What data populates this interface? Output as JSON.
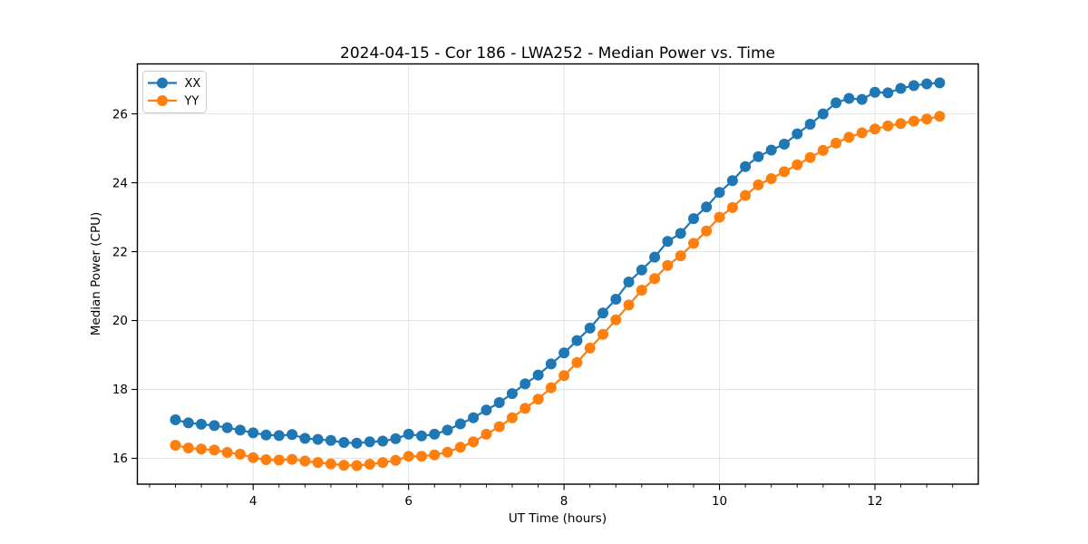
{
  "figure": {
    "background": "#ffffff"
  },
  "chart_data": {
    "type": "line",
    "title": "2024-04-15 - Cor 186 - LWA252 - Median Power vs. Time",
    "xlabel": "UT Time (hours)",
    "ylabel": "Median Power (CPU)",
    "xlim": [
      2.51,
      13.33
    ],
    "ylim": [
      15.25,
      27.45
    ],
    "xticks": [
      4,
      6,
      8,
      10,
      12
    ],
    "yticks": [
      16,
      18,
      20,
      22,
      24,
      26
    ],
    "minor_xtick_step": 0.3333,
    "grid": true,
    "grid_color": "#e4e4e4",
    "spine_color": "#000000",
    "legend_position": "upper-left",
    "marker": "circle",
    "x": [
      3.0,
      3.167,
      3.333,
      3.5,
      3.667,
      3.833,
      4.0,
      4.167,
      4.333,
      4.5,
      4.667,
      4.833,
      5.0,
      5.167,
      5.333,
      5.5,
      5.667,
      5.833,
      6.0,
      6.167,
      6.333,
      6.5,
      6.667,
      6.833,
      7.0,
      7.167,
      7.333,
      7.5,
      7.667,
      7.833,
      8.0,
      8.167,
      8.333,
      8.5,
      8.667,
      8.833,
      9.0,
      9.167,
      9.333,
      9.5,
      9.667,
      9.833,
      10.0,
      10.167,
      10.333,
      10.5,
      10.667,
      10.833,
      11.0,
      11.167,
      11.333,
      11.5,
      11.667,
      11.833,
      12.0,
      12.167,
      12.333,
      12.5,
      12.667,
      12.833
    ],
    "series": [
      {
        "name": "XX",
        "color": "#1f77b4",
        "values": [
          17.12,
          17.03,
          16.99,
          16.95,
          16.89,
          16.82,
          16.74,
          16.68,
          16.66,
          16.69,
          16.58,
          16.55,
          16.52,
          16.46,
          16.44,
          16.48,
          16.5,
          16.57,
          16.7,
          16.65,
          16.7,
          16.82,
          17.0,
          17.18,
          17.4,
          17.62,
          17.88,
          18.16,
          18.42,
          18.74,
          19.06,
          19.42,
          19.78,
          20.22,
          20.62,
          21.12,
          21.47,
          21.84,
          22.3,
          22.53,
          22.96,
          23.3,
          23.72,
          24.06,
          24.47,
          24.76,
          24.95,
          25.12,
          25.42,
          25.7,
          26.0,
          26.32,
          26.45,
          26.42,
          26.63,
          26.61,
          26.74,
          26.82,
          26.87,
          26.9
        ]
      },
      {
        "name": "YY",
        "color": "#ff7f0e",
        "values": [
          16.38,
          16.3,
          16.27,
          16.24,
          16.17,
          16.12,
          16.02,
          15.96,
          15.95,
          15.97,
          15.92,
          15.88,
          15.84,
          15.8,
          15.79,
          15.83,
          15.88,
          15.94,
          16.06,
          16.06,
          16.1,
          16.18,
          16.32,
          16.48,
          16.7,
          16.92,
          17.18,
          17.45,
          17.72,
          18.05,
          18.4,
          18.78,
          19.2,
          19.6,
          20.02,
          20.45,
          20.88,
          21.22,
          21.6,
          21.88,
          22.24,
          22.6,
          23.0,
          23.28,
          23.63,
          23.94,
          24.12,
          24.32,
          24.52,
          24.73,
          24.94,
          25.15,
          25.32,
          25.45,
          25.56,
          25.65,
          25.72,
          25.79,
          25.85,
          25.93
        ]
      }
    ]
  }
}
